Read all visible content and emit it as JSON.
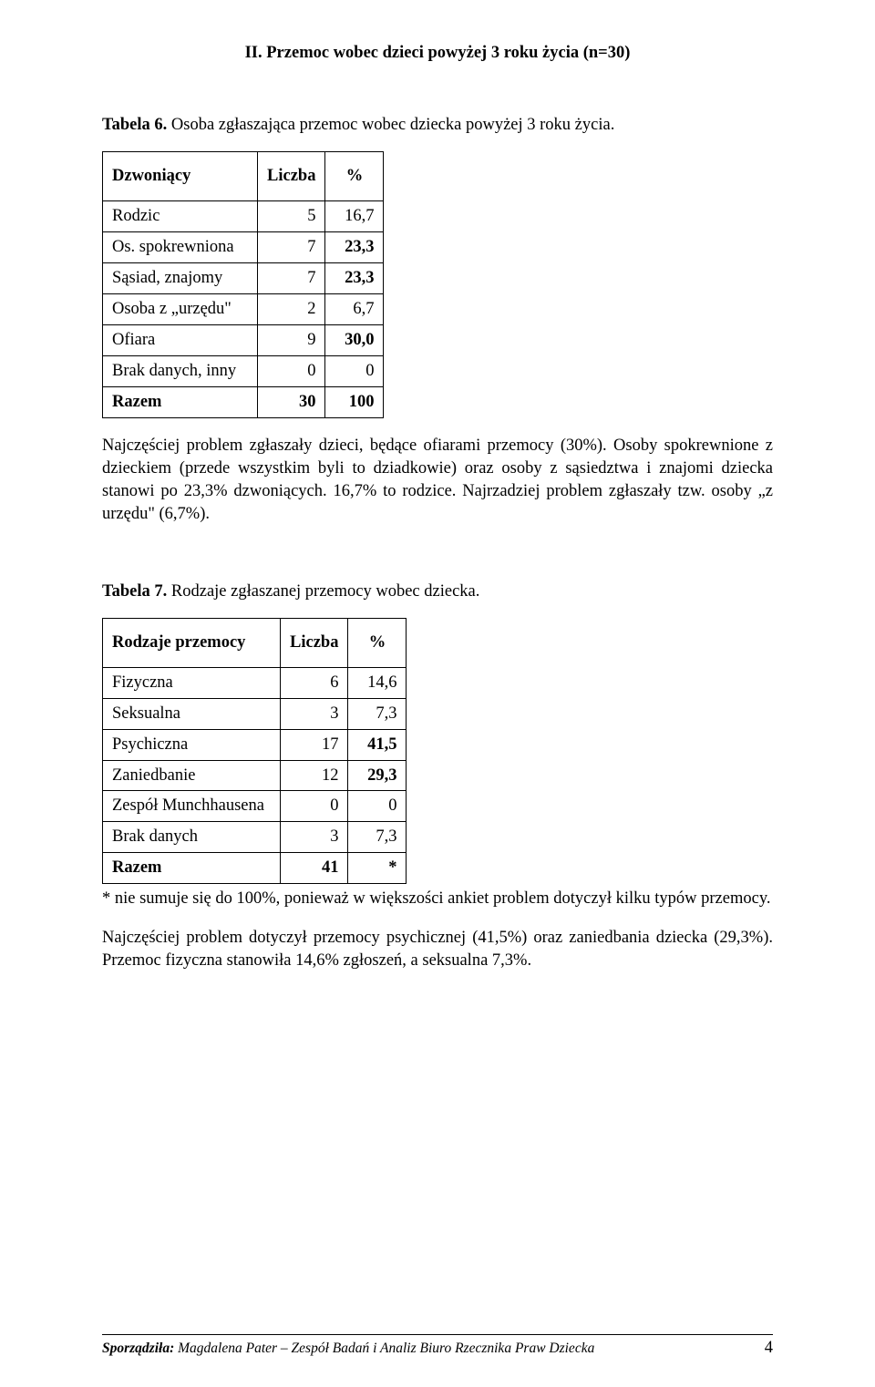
{
  "section_title": "II. Przemoc wobec dzieci powyżej 3 roku życia (n=30)",
  "table6": {
    "caption_label": "Tabela 6.",
    "caption_text": " Osoba zgłaszająca przemoc wobec dziecka powyżej 3 roku życia.",
    "headers": {
      "c1": "Dzwoniący",
      "c2": "Liczba",
      "c3": "%"
    },
    "rows": [
      {
        "name": "Rodzic",
        "count": "5",
        "pct": "16,7",
        "bold_pct": false
      },
      {
        "name": "Os. spokrewniona",
        "count": "7",
        "pct": "23,3",
        "bold_pct": true
      },
      {
        "name": "Sąsiad, znajomy",
        "count": "7",
        "pct": "23,3",
        "bold_pct": true
      },
      {
        "name": "Osoba z „urzędu\"",
        "count": "2",
        "pct": "6,7",
        "bold_pct": false
      },
      {
        "name": "Ofiara",
        "count": "9",
        "pct": "30,0",
        "bold_pct": true
      },
      {
        "name": "Brak danych, inny",
        "count": "0",
        "pct": "0",
        "bold_pct": false
      }
    ],
    "total": {
      "name": "Razem",
      "count": "30",
      "pct": "100"
    },
    "col_widths": {
      "c1": 170,
      "c2": 72,
      "c3": 64
    }
  },
  "para1": "Najczęściej problem zgłaszały dzieci, będące ofiarami przemocy (30%). Osoby spokrewnione z dzieckiem (przede wszystkim byli to dziadkowie) oraz osoby z sąsiedztwa i znajomi dziecka stanowi po 23,3% dzwoniących. 16,7% to rodzice. Najrzadziej problem zgłaszały tzw. osoby „z urzędu\" (6,7%).",
  "table7": {
    "caption_label": "Tabela 7.",
    "caption_text": " Rodzaje zgłaszanej przemocy wobec dziecka.",
    "headers": {
      "c1": "Rodzaje przemocy",
      "c2": "Liczba",
      "c3": "%"
    },
    "rows": [
      {
        "name": "Fizyczna",
        "count": "6",
        "pct": "14,6",
        "bold_pct": false
      },
      {
        "name": "Seksualna",
        "count": "3",
        "pct": "7,3",
        "bold_pct": false
      },
      {
        "name": "Psychiczna",
        "count": "17",
        "pct": "41,5",
        "bold_pct": true
      },
      {
        "name": "Zaniedbanie",
        "count": "12",
        "pct": "29,3",
        "bold_pct": true
      },
      {
        "name": "Zespół Munchhausena",
        "count": "0",
        "pct": "0",
        "bold_pct": false
      },
      {
        "name": "Brak danych",
        "count": "3",
        "pct": "7,3",
        "bold_pct": false
      }
    ],
    "total": {
      "name": "Razem",
      "count": "41",
      "pct": "*"
    },
    "col_widths": {
      "c1": 195,
      "c2": 72,
      "c3": 64
    }
  },
  "footnote": "* nie sumuje się do 100%, ponieważ w większości ankiet problem dotyczył kilku typów przemocy.",
  "para2": "Najczęściej problem dotyczył przemocy psychicznej (41,5%) oraz zaniedbania dziecka (29,3%). Przemoc fizyczna stanowiła 14,6% zgłoszeń, a seksualna 7,3%.",
  "footer": {
    "label": "Sporządziła:",
    "rest": " Magdalena Pater – Zespół Badań i Analiz Biuro Rzecznika Praw Dziecka",
    "page": "4"
  }
}
